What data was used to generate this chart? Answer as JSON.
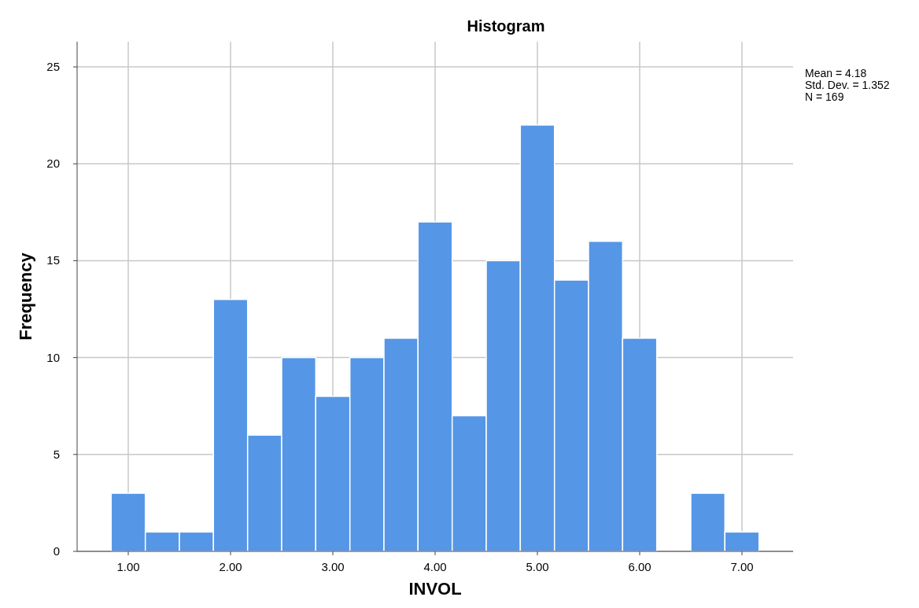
{
  "chart_data": {
    "type": "histogram",
    "title": "Histogram",
    "xlabel": "INVOL",
    "ylabel": "Frequency",
    "bins": [
      0.833,
      1.167,
      1.5,
      1.833,
      2.167,
      2.5,
      2.833,
      3.167,
      3.5,
      3.833,
      4.167,
      4.5,
      4.833,
      5.167,
      5.5,
      5.833,
      6.167,
      6.5,
      6.833,
      7.167
    ],
    "values": [
      3,
      1,
      1,
      13,
      6,
      10,
      8,
      10,
      11,
      17,
      7,
      15,
      22,
      14,
      16,
      11,
      0,
      3,
      1
    ],
    "color": "#5596e6",
    "xlim": [
      0.5,
      7.5
    ],
    "xticks": [
      {
        "value": 1,
        "label": "1.00"
      },
      {
        "value": 2,
        "label": "2.00"
      },
      {
        "value": 3,
        "label": "3.00"
      },
      {
        "value": 4,
        "label": "4.00"
      },
      {
        "value": 5,
        "label": "5.00"
      },
      {
        "value": 6,
        "label": "6.00"
      },
      {
        "value": 7,
        "label": "7.00"
      }
    ],
    "ylim": [
      0,
      26.3
    ],
    "yticks": [
      0,
      5,
      10,
      15,
      20,
      25
    ],
    "grid": true,
    "annotations": [
      "Mean = 4.18",
      "Std. Dev. = 1.352",
      "N = 169"
    ]
  }
}
